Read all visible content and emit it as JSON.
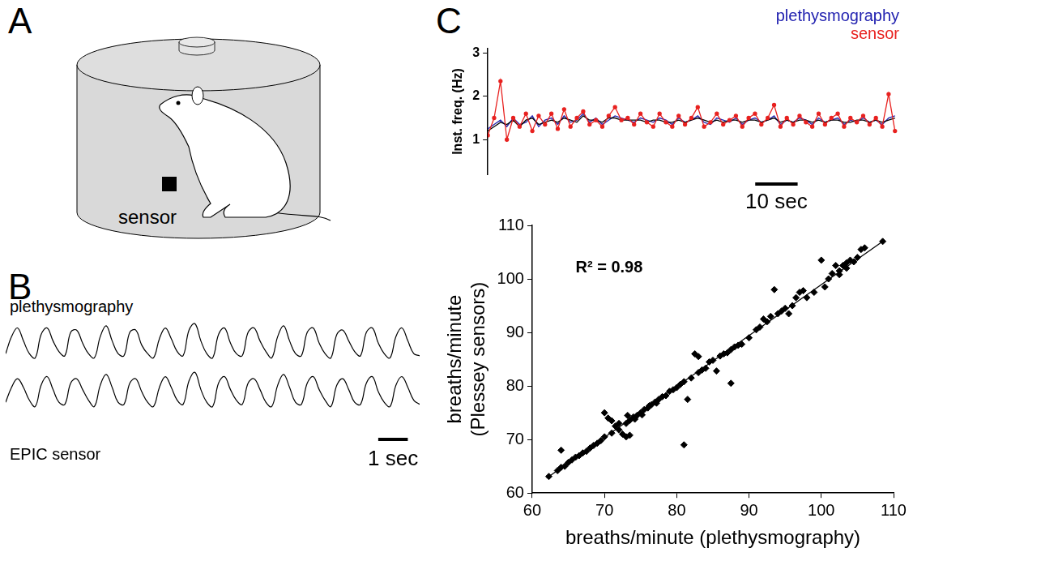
{
  "panel_labels": [
    "A",
    "B",
    "C"
  ],
  "diagram": {
    "label": "sensor"
  },
  "chart_data": [
    {
      "type": "line",
      "title": "plethysmography",
      "tick_labels": false,
      "xlim": [
        0,
        14
      ],
      "ylim": [
        0,
        11
      ],
      "x": [
        0,
        0.2,
        0.4,
        0.6,
        0.8,
        1,
        1.2,
        1.4,
        1.6,
        1.8,
        2,
        2.2,
        2.4,
        2.6,
        2.8,
        3,
        3.2,
        3.4,
        3.6,
        3.8,
        4,
        4.2,
        4.4,
        4.6,
        4.8,
        5,
        5.2,
        5.4,
        5.6,
        5.8,
        6,
        6.2,
        6.4,
        6.6,
        6.8,
        7,
        7.2,
        7.4,
        7.6,
        7.8,
        8,
        8.2,
        8.4,
        8.6,
        8.8,
        9,
        9.2,
        9.4,
        9.6,
        9.8,
        10,
        10.2,
        10.4,
        10.6,
        10.8,
        11,
        11.2,
        11.4,
        11.6,
        11.8,
        12,
        12.2,
        12.4,
        12.6,
        12.8,
        13,
        13.2,
        13.4,
        13.6,
        13.8,
        14
      ],
      "series": [
        {
          "color": "#000000",
          "values": [
            3,
            7,
            9,
            6,
            3,
            2,
            7.5,
            9,
            6,
            3.5,
            2.5,
            8,
            8.5,
            5.5,
            3,
            2,
            7,
            9.5,
            6,
            3,
            2.5,
            8,
            8.5,
            5,
            3,
            2,
            6.5,
            9,
            6.5,
            3.5,
            2.5,
            8.5,
            10,
            6,
            3,
            2,
            7.5,
            9,
            5.5,
            3,
            2.5,
            8,
            9,
            6,
            3.5,
            2,
            7,
            9.5,
            6,
            3,
            2.5,
            8,
            9,
            5.5,
            3,
            2,
            7.5,
            8.5,
            6,
            3.5,
            2.5,
            8,
            9,
            5.5,
            3,
            2,
            7,
            9,
            6,
            3,
            2.5
          ]
        }
      ]
    },
    {
      "type": "line",
      "title": "EPIC sensor",
      "tick_labels": false,
      "xlim": [
        0,
        14
      ],
      "ylim": [
        0,
        11
      ],
      "scale_bar": {
        "length": 1,
        "label": "1 sec"
      },
      "x": [
        0,
        0.2,
        0.4,
        0.6,
        0.8,
        1,
        1.2,
        1.4,
        1.6,
        1.8,
        2,
        2.2,
        2.4,
        2.6,
        2.8,
        3,
        3.2,
        3.4,
        3.6,
        3.8,
        4,
        4.2,
        4.4,
        4.6,
        4.8,
        5,
        5.2,
        5.4,
        5.6,
        5.8,
        6,
        6.2,
        6.4,
        6.6,
        6.8,
        7,
        7.2,
        7.4,
        7.6,
        7.8,
        8,
        8.2,
        8.4,
        8.6,
        8.8,
        9,
        9.2,
        9.4,
        9.6,
        9.8,
        10,
        10.2,
        10.4,
        10.6,
        10.8,
        11,
        11.2,
        11.4,
        11.6,
        11.8,
        12,
        12.2,
        12.4,
        12.6,
        12.8,
        13,
        13.2,
        13.4,
        13.6,
        13.8,
        14
      ],
      "series": [
        {
          "color": "#000000",
          "values": [
            3,
            6.5,
            8.5,
            6.5,
            3.5,
            2,
            7,
            9,
            6,
            3,
            2.5,
            7.5,
            8.5,
            6,
            3.5,
            2,
            7,
            9.5,
            6.5,
            3,
            2.5,
            7.5,
            8.5,
            5.5,
            3,
            2,
            6.5,
            9,
            6.5,
            3.5,
            2.5,
            8,
            10,
            6,
            3,
            2,
            7.5,
            9,
            6,
            3.5,
            2.5,
            7.5,
            8.5,
            6,
            3,
            2,
            7,
            9.5,
            6.5,
            3,
            2.5,
            7.5,
            9,
            6,
            3.5,
            2,
            7,
            8.5,
            6,
            3,
            2.5,
            7.5,
            9,
            5.5,
            3,
            2,
            7,
            9,
            6.5,
            3.5,
            2.5
          ]
        }
      ]
    },
    {
      "type": "line",
      "ylabel": "Inst. freq. (Hz)",
      "tick_labels": "y",
      "legend": "top-right",
      "xlim": [
        0,
        97
      ],
      "ylim": [
        0.2,
        3.1
      ],
      "yticks": [
        1,
        2,
        3
      ],
      "scale_bar": {
        "length": 10,
        "label": "10 sec"
      },
      "x": [
        0,
        1.5,
        3,
        4.5,
        6,
        7.5,
        9,
        10.5,
        12,
        13.5,
        15,
        16.5,
        18,
        19.5,
        21,
        22.5,
        24,
        25.5,
        27,
        28.5,
        30,
        31.5,
        33,
        34.5,
        36,
        37.5,
        39,
        40.5,
        42,
        43.5,
        45,
        46.5,
        48,
        49.5,
        51,
        52.5,
        54,
        55.5,
        57,
        58.5,
        60,
        61.5,
        63,
        64.5,
        66,
        67.5,
        69,
        70.5,
        72,
        73.5,
        75,
        76.5,
        78,
        79.5,
        81,
        82.5,
        84,
        85.5,
        87,
        88.5,
        90,
        91.5,
        93,
        94.5,
        96
      ],
      "series": [
        {
          "name": "plethysmography",
          "color": "#2222b0",
          "values": [
            1.25,
            1.35,
            1.45,
            1.3,
            1.5,
            1.35,
            1.4,
            1.55,
            1.3,
            1.45,
            1.5,
            1.35,
            1.55,
            1.4,
            1.45,
            1.6,
            1.4,
            1.5,
            1.35,
            1.45,
            1.55,
            1.5,
            1.45,
            1.4,
            1.5,
            1.45,
            1.4,
            1.5,
            1.45,
            1.35,
            1.5,
            1.4,
            1.45,
            1.55,
            1.4,
            1.35,
            1.5,
            1.45,
            1.4,
            1.5,
            1.35,
            1.45,
            1.5,
            1.4,
            1.45,
            1.55,
            1.35,
            1.45,
            1.4,
            1.5,
            1.45,
            1.35,
            1.5,
            1.4,
            1.45,
            1.5,
            1.35,
            1.45,
            1.4,
            1.5,
            1.4,
            1.45,
            1.35,
            1.5,
            1.55
          ]
        },
        {
          "color": "#000000",
          "values": [
            1.2,
            1.3,
            1.4,
            1.35,
            1.45,
            1.3,
            1.45,
            1.5,
            1.35,
            1.4,
            1.45,
            1.4,
            1.5,
            1.45,
            1.4,
            1.55,
            1.45,
            1.45,
            1.4,
            1.5,
            1.5,
            1.45,
            1.45,
            1.45,
            1.45,
            1.4,
            1.45,
            1.45,
            1.4,
            1.4,
            1.45,
            1.4,
            1.45,
            1.5,
            1.45,
            1.4,
            1.45,
            1.4,
            1.45,
            1.45,
            1.4,
            1.45,
            1.45,
            1.4,
            1.45,
            1.5,
            1.4,
            1.45,
            1.4,
            1.45,
            1.45,
            1.4,
            1.45,
            1.4,
            1.45,
            1.45,
            1.4,
            1.4,
            1.45,
            1.45,
            1.4,
            1.45,
            1.4,
            1.45,
            1.5
          ]
        },
        {
          "name": "sensor",
          "color": "#e8211f",
          "marker": "circle",
          "values": [
            1.1,
            1.5,
            2.35,
            1.0,
            1.5,
            1.3,
            1.6,
            1.2,
            1.55,
            1.35,
            1.6,
            1.25,
            1.7,
            1.3,
            1.5,
            1.65,
            1.35,
            1.45,
            1.3,
            1.55,
            1.75,
            1.45,
            1.5,
            1.35,
            1.6,
            1.4,
            1.3,
            1.6,
            1.4,
            1.3,
            1.55,
            1.35,
            1.5,
            1.75,
            1.3,
            1.4,
            1.6,
            1.35,
            1.45,
            1.55,
            1.3,
            1.5,
            1.6,
            1.35,
            1.5,
            1.8,
            1.3,
            1.5,
            1.35,
            1.55,
            1.4,
            1.3,
            1.6,
            1.35,
            1.5,
            1.6,
            1.3,
            1.5,
            1.4,
            1.55,
            1.35,
            1.5,
            1.3,
            2.05,
            1.2
          ]
        }
      ]
    },
    {
      "type": "scatter",
      "xlabel": "breaths/minute (plethysmography)",
      "ylabel": [
        "breaths/minute",
        "(Plessey sensors)"
      ],
      "xlim": [
        60,
        110
      ],
      "xticks": [
        60,
        70,
        80,
        90,
        100,
        110
      ],
      "ylim": [
        60,
        110
      ],
      "yticks": [
        60,
        70,
        80,
        90,
        100,
        110
      ],
      "annotations": [
        "R² = 0.98"
      ],
      "series": [
        {
          "color": "#000000",
          "marker": "diamond",
          "x": [
            62.3,
            63.5,
            64,
            64,
            64.5,
            65,
            65.5,
            66,
            66.5,
            67,
            67.5,
            68,
            68.5,
            69,
            69.5,
            70,
            70.5,
            71,
            71.5,
            72,
            72.5,
            73,
            73.5,
            70,
            71,
            72,
            73,
            73.5,
            74,
            74.5,
            75,
            75.5,
            76,
            76.5,
            77,
            77.5,
            78,
            78.5,
            79,
            79.5,
            80,
            80.5,
            81,
            81,
            81.5,
            82,
            82.5,
            83,
            83,
            83.5,
            84,
            84.5,
            85,
            85.5,
            86,
            86.5,
            87,
            87.5,
            87.5,
            88,
            88.5,
            89,
            90,
            91,
            91.5,
            92,
            92.5,
            93,
            93.5,
            94,
            94.5,
            95,
            95.5,
            96,
            96.5,
            97,
            97.5,
            98,
            99,
            100,
            100.5,
            101,
            101.5,
            102,
            102.5,
            103,
            103.5,
            104,
            104.5,
            105,
            105.5,
            106,
            103.5,
            102.5,
            108.5,
            73.2,
            74.2,
            75.2,
            76.2,
            77.2
          ],
          "values": [
            63.1,
            64.2,
            64.8,
            68,
            65,
            65.7,
            66.2,
            66.7,
            67,
            67.5,
            67.8,
            68.4,
            68.9,
            69.3,
            69.8,
            75,
            74,
            73.5,
            72.5,
            73,
            71,
            70.5,
            70.8,
            70.5,
            71.2,
            71.8,
            73,
            73.6,
            74.2,
            74.5,
            75,
            75.6,
            75.9,
            76.5,
            77,
            77.5,
            78,
            78.2,
            79,
            79.3,
            79.7,
            80.3,
            69,
            80.8,
            77.5,
            81.5,
            86,
            85.5,
            82.5,
            83,
            83.3,
            84.5,
            84.8,
            82.8,
            85.6,
            86,
            86.2,
            80.5,
            86.8,
            87.3,
            87.6,
            87.8,
            89,
            90.5,
            91,
            92.5,
            92,
            93,
            98,
            93.5,
            94,
            94.5,
            93.5,
            95,
            96.5,
            97.5,
            97.8,
            96.5,
            97.5,
            103.5,
            98.5,
            100,
            101,
            102.5,
            101.5,
            102.5,
            103,
            103.5,
            103.2,
            104,
            105.5,
            105.8,
            102,
            100.8,
            107,
            74.5,
            73.8,
            74.6,
            76.3,
            76.8
          ]
        },
        {
          "type": "line",
          "color": "#000000",
          "x": [
            62,
            108.5
          ],
          "values": [
            62.8,
            107
          ]
        }
      ]
    }
  ]
}
